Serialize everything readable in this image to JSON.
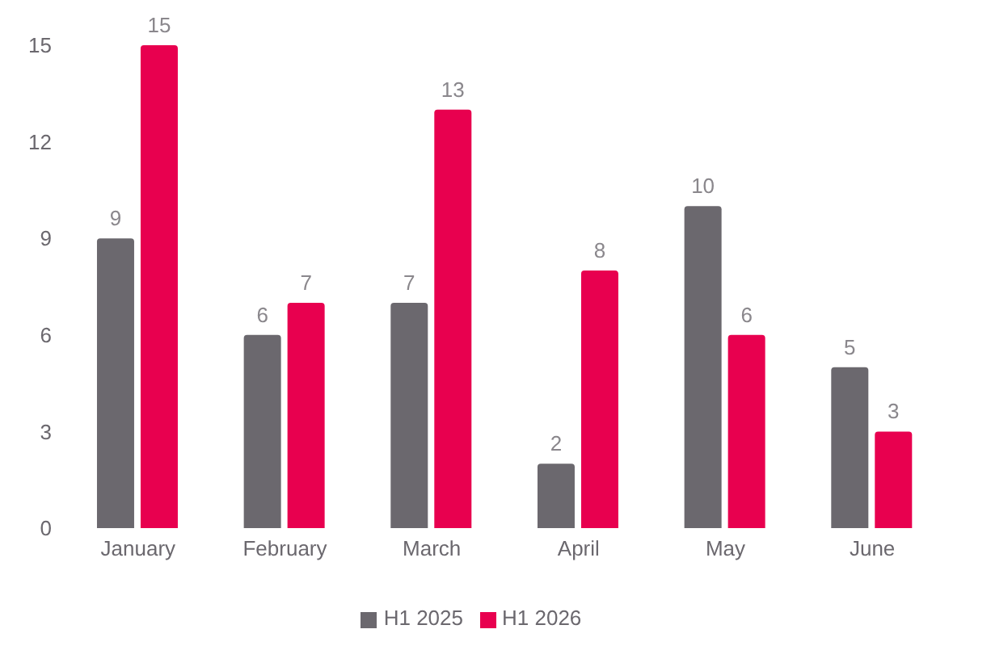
{
  "chart_data": {
    "type": "bar",
    "categories": [
      "January",
      "February",
      "March",
      "April",
      "May",
      "June"
    ],
    "series": [
      {
        "name": "H1 2025",
        "color": "#6b686e",
        "values": [
          9,
          6,
          7,
          2,
          10,
          5
        ]
      },
      {
        "name": "H1 2026",
        "color": "#e8004f",
        "values": [
          15,
          7,
          13,
          8,
          6,
          3
        ]
      }
    ],
    "ylim": [
      0,
      15
    ],
    "yticks": [
      0,
      3,
      6,
      9,
      12,
      15
    ],
    "grid": false,
    "legend": "bottom",
    "data_labels": true
  }
}
